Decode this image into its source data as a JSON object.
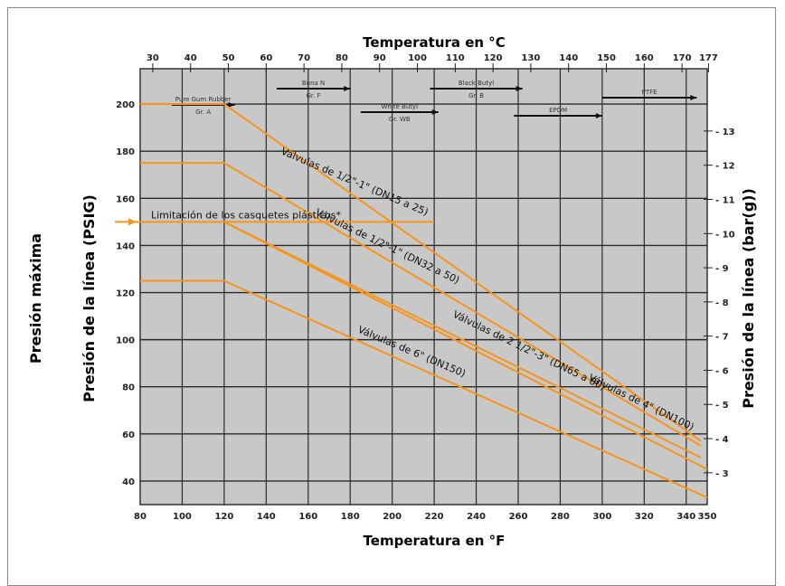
{
  "chart_data": {
    "type": "line",
    "title_top": "Temperatura en °C",
    "xlabel": "Temperatura en °F",
    "ylabel_outer": "Presión máxima",
    "ylabel": "Presión de la línea (PSIG)",
    "ylabel_right": "Presión de la línea (bar(g))",
    "xlim": [
      80,
      350
    ],
    "ylim": [
      30,
      215
    ],
    "x_ticks": [
      "80",
      "100",
      "120",
      "140",
      "160",
      "180",
      "200",
      "220",
      "240",
      "260",
      "280",
      "300",
      "320",
      "340",
      "350"
    ],
    "y_ticks": [
      "40",
      "60",
      "80",
      "100",
      "120",
      "140",
      "160",
      "180",
      "200"
    ],
    "top_ticks": [
      "30",
      "40",
      "50",
      "60",
      "70",
      "80",
      "90",
      "100",
      "110",
      "120",
      "130",
      "140",
      "150",
      "160",
      "170",
      "177"
    ],
    "right_ticks": [
      "3",
      "4",
      "5",
      "6",
      "7",
      "8",
      "9",
      "10",
      "11",
      "12",
      "13"
    ],
    "grid": true,
    "series": [
      {
        "name": "Válvulas de 1/2\"-1\" (DN15 a 25)",
        "x": [
          80,
          120,
          347
        ],
        "y": [
          200,
          200,
          57
        ]
      },
      {
        "name": "Válvulas de 1/2\"-1\" (DN32 a 50)",
        "x": [
          80,
          120,
          347
        ],
        "y": [
          175,
          175,
          55
        ]
      },
      {
        "name": "Válvulas de 2 1/2\"-3\" (DN65 a 80)",
        "x": [
          120,
          347
        ],
        "y": [
          150,
          50
        ]
      },
      {
        "name": "Válvulas de 4\" (DN100)",
        "x": [
          120,
          350
        ],
        "y": [
          150,
          45
        ]
      },
      {
        "name": "Válvulas de 6\" (DN150)",
        "x": [
          80,
          120,
          350
        ],
        "y": [
          125,
          125,
          33
        ]
      }
    ],
    "limit_line": {
      "label": "Limitación de los casquetes plásticos*",
      "y": 150,
      "x": [
        80,
        220
      ]
    },
    "materials": [
      {
        "label": "Pure Gum Rubber",
        "sub": "Gr. A"
      },
      {
        "label": "Buna N",
        "sub": "Gr. F"
      },
      {
        "label": "White Butyl",
        "sub": "Gr. WB"
      },
      {
        "label": "Black Butyl",
        "sub": "Gr. B"
      },
      {
        "label": "EPDM",
        "sub": ""
      },
      {
        "label": "PTFE",
        "sub": ""
      }
    ],
    "colors": {
      "line": "#f7941d",
      "plot_bg": "#c8c8c8",
      "grid": "#2a2a2a"
    }
  }
}
